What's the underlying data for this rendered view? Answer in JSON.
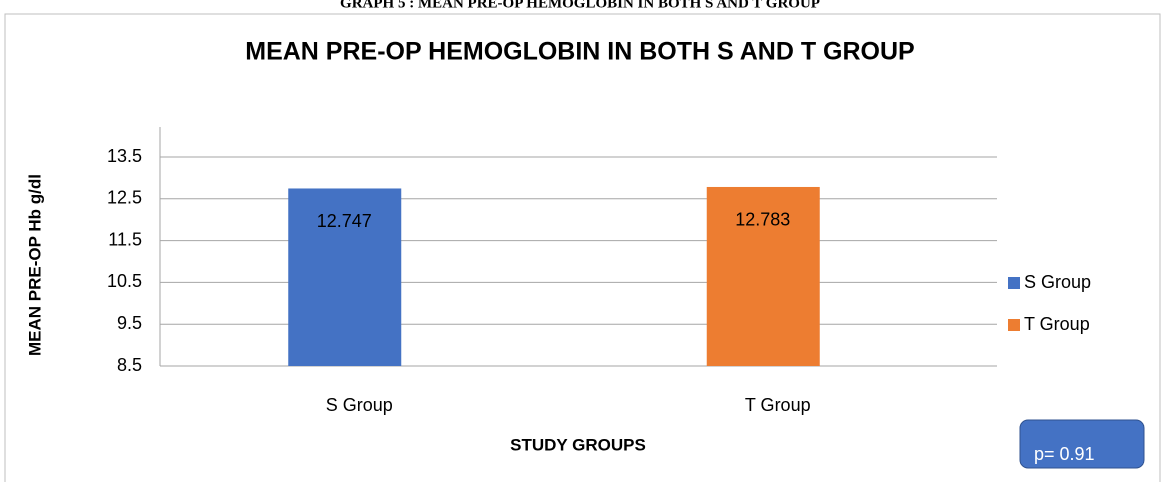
{
  "chart_data": {
    "type": "bar",
    "heading": "GRAPH 5 : MEAN PRE-OP HEMOGLOBIN IN BOTH S AND T GROUP",
    "title": "MEAN PRE-OP HEMOGLOBIN IN BOTH S AND T GROUP",
    "x_label": "STUDY GROUPS",
    "y_label": "MEAN PRE-OP Hb g/dl",
    "categories": [
      "S Group",
      "T Group"
    ],
    "values": [
      12.747,
      12.783
    ],
    "colors": [
      "#4472c4",
      "#ed7d31"
    ],
    "ylim": [
      8.5,
      13.5
    ],
    "yticks": [
      8.5,
      9.5,
      10.5,
      11.5,
      12.5,
      13.5
    ],
    "grid": true,
    "legend": "right",
    "annotation": "p= 0.91"
  }
}
